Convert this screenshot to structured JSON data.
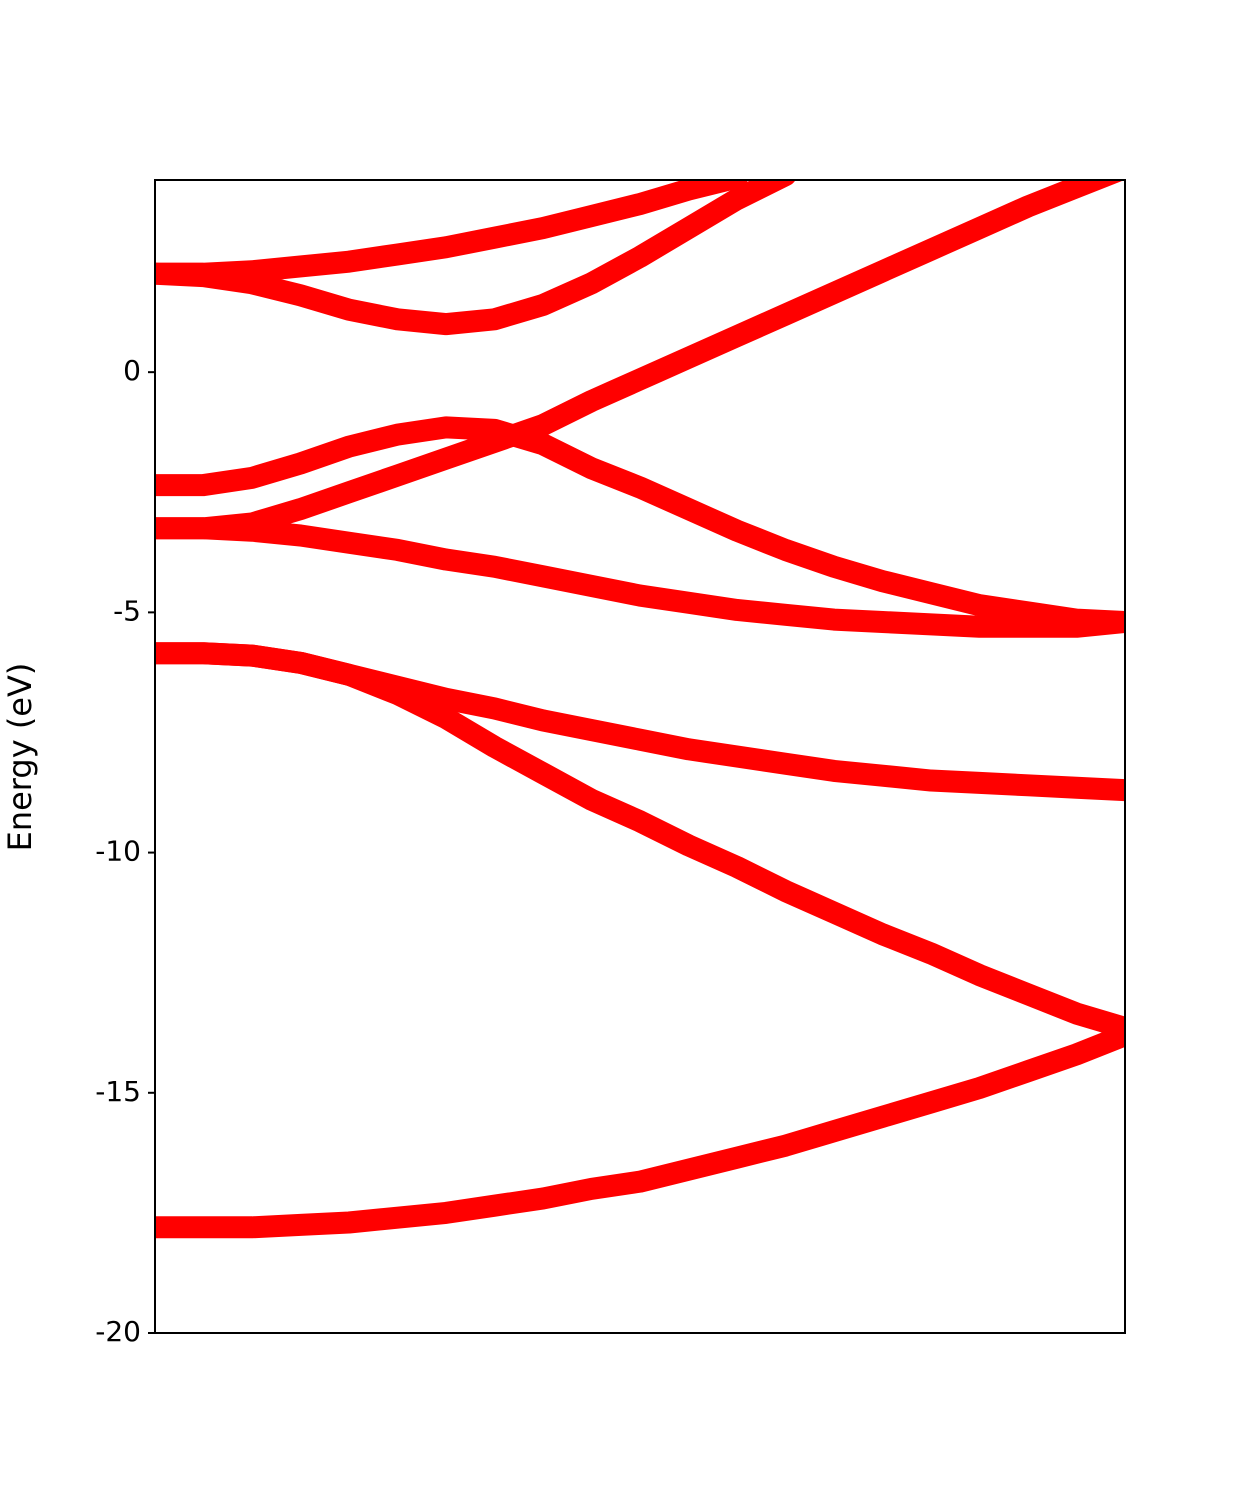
{
  "chart_data": {
    "type": "line",
    "ylabel": "Energy (eV)",
    "color": "#ff0000",
    "x": [
      0,
      1,
      2,
      3,
      4,
      5,
      6,
      7,
      8,
      9,
      10,
      11,
      12,
      13,
      14,
      15,
      16,
      17,
      18,
      19,
      20
    ],
    "xlim": [
      0,
      20
    ],
    "ylim": [
      -20,
      4
    ],
    "yticks": [
      -20,
      -15,
      -10,
      -5,
      0
    ],
    "series": [
      {
        "color": "#ff0000",
        "values": [
          -17.8,
          -17.8,
          -17.8,
          -17.75,
          -17.7,
          -17.6,
          -17.5,
          -17.35,
          -17.2,
          -17.0,
          -16.85,
          -16.6,
          -16.35,
          -16.1,
          -15.8,
          -15.5,
          -15.2,
          -14.9,
          -14.55,
          -14.2,
          -13.8
        ]
      },
      {
        "color": "#ff0000",
        "values": [
          -5.85,
          -5.85,
          -5.9,
          -6.05,
          -6.3,
          -6.7,
          -7.2,
          -7.8,
          -8.35,
          -8.9,
          -9.35,
          -9.85,
          -10.3,
          -10.8,
          -11.25,
          -11.7,
          -12.1,
          -12.55,
          -12.95,
          -13.35,
          -13.65
        ]
      },
      {
        "color": "#ff0000",
        "values": [
          -5.85,
          -5.85,
          -5.9,
          -6.05,
          -6.3,
          -6.55,
          -6.8,
          -7.0,
          -7.25,
          -7.45,
          -7.65,
          -7.85,
          -8.0,
          -8.15,
          -8.3,
          -8.4,
          -8.5,
          -8.55,
          -8.6,
          -8.65,
          -8.7
        ]
      },
      {
        "color": "#ff0000",
        "values": [
          -3.25,
          -3.25,
          -3.3,
          -3.4,
          -3.55,
          -3.7,
          -3.9,
          -4.05,
          -4.25,
          -4.45,
          -4.65,
          -4.8,
          -4.95,
          -5.05,
          -5.15,
          -5.2,
          -5.25,
          -5.3,
          -5.3,
          -5.3,
          -5.2
        ]
      },
      {
        "color": "#ff0000",
        "values": [
          -3.25,
          -3.25,
          -3.15,
          -2.85,
          -2.5,
          -2.15,
          -1.8,
          -1.45,
          -1.1,
          -0.6,
          -0.15,
          0.3,
          0.75,
          1.2,
          1.65,
          2.1,
          2.55,
          3.0,
          3.45,
          3.85,
          4.25
        ]
      },
      {
        "color": "#ff0000",
        "values": [
          -2.35,
          -2.35,
          -2.2,
          -1.9,
          -1.55,
          -1.3,
          -1.15,
          -1.2,
          -1.5,
          -2.0,
          -2.4,
          -2.85,
          -3.3,
          -3.7,
          -4.05,
          -4.35,
          -4.6,
          -4.85,
          -5.0,
          -5.15,
          -5.2
        ]
      },
      {
        "color": "#ff0000",
        "values": [
          2.05,
          2.0,
          1.85,
          1.6,
          1.3,
          1.1,
          1.0,
          1.1,
          1.4,
          1.85,
          2.4,
          3.0,
          3.6,
          4.1,
          null,
          null,
          null,
          null,
          null,
          null,
          null
        ]
      },
      {
        "color": "#ff0000",
        "values": [
          2.05,
          2.05,
          2.1,
          2.2,
          2.3,
          2.45,
          2.6,
          2.8,
          3.0,
          3.25,
          3.5,
          3.8,
          4.05,
          null,
          null,
          null,
          null,
          null,
          null,
          null,
          null
        ]
      }
    ]
  }
}
